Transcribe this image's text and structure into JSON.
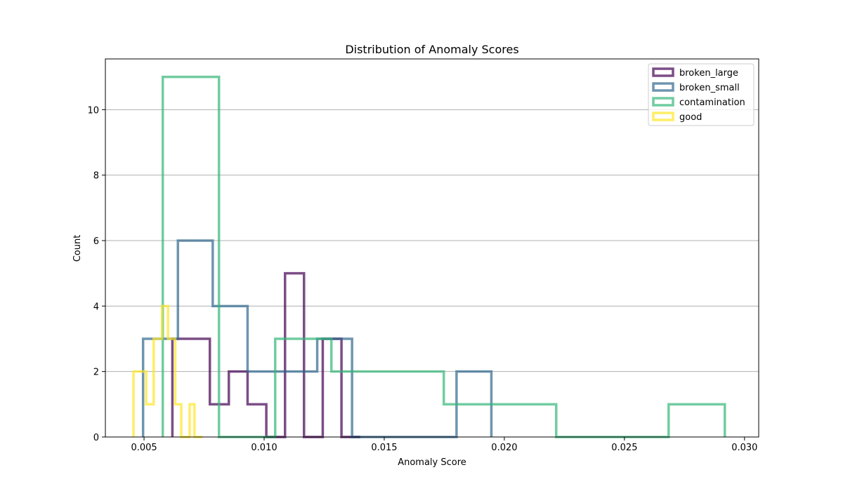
{
  "chart_data": {
    "type": "histogram",
    "title": "Distribution of Anomaly Scores",
    "xlabel": "Anomaly Score",
    "ylabel": "Count",
    "xlim": [
      0.00339,
      0.03059
    ],
    "ylim": [
      0,
      11.55
    ],
    "xticks": [
      "0.005",
      "0.010",
      "0.015",
      "0.020",
      "0.025",
      "0.030"
    ],
    "xtick_values": [
      0.005,
      0.01,
      0.015,
      0.02,
      0.025,
      0.03
    ],
    "yticks": [
      "0",
      "2",
      "4",
      "6",
      "8",
      "10"
    ],
    "ytick_values": [
      0,
      2,
      4,
      6,
      8,
      10
    ],
    "grid": "horizontal",
    "legend_position": "upper right",
    "series": [
      {
        "name": "broken_large",
        "color": "#440154",
        "edges": [
          0.00618,
          0.00696,
          0.00774,
          0.00853,
          0.00931,
          0.01009,
          0.01087,
          0.01166,
          0.01244,
          0.01322,
          0.014
        ],
        "counts": [
          3,
          3,
          1,
          2,
          1,
          0,
          5,
          0,
          3,
          0
        ]
      },
      {
        "name": "broken_small",
        "color": "#31688e",
        "edges": [
          0.00496,
          0.00641,
          0.00786,
          0.00931,
          0.01076,
          0.01221,
          0.01366,
          0.01511,
          0.01656,
          0.01801,
          0.01946
        ],
        "counts": [
          3,
          6,
          4,
          2,
          2,
          3,
          0,
          0,
          0,
          2
        ]
      },
      {
        "name": "contamination",
        "color": "#35b779",
        "edges": [
          0.00578,
          0.00812,
          0.01046,
          0.0128,
          0.01514,
          0.01748,
          0.01982,
          0.02216,
          0.0245,
          0.02684,
          0.02918
        ],
        "counts": [
          11,
          0,
          3,
          2,
          2,
          1,
          1,
          0,
          0,
          1
        ]
      },
      {
        "name": "good",
        "color": "#fde725",
        "edges": [
          0.00456,
          0.00509,
          0.0054,
          0.00575,
          0.006,
          0.0063,
          0.00655,
          0.0069,
          0.0071,
          0.00743
        ],
        "counts": [
          2,
          1,
          3,
          4,
          3,
          1,
          0,
          1,
          0
        ]
      }
    ]
  }
}
